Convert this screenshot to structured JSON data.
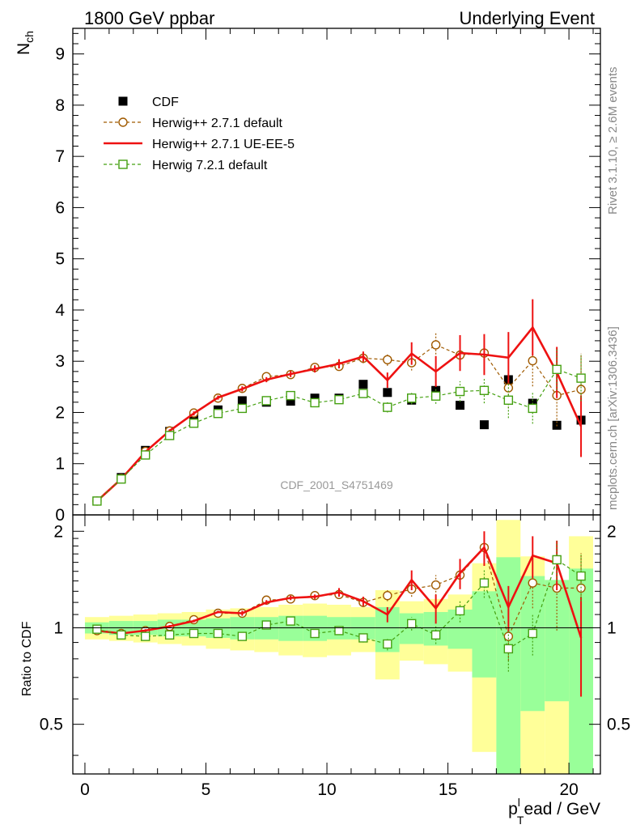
{
  "header": {
    "left": "1800 GeV ppbar",
    "right": "Underlying Event"
  },
  "side_labels": {
    "rivet": "Rivet 3.1.10, ≥ 2.6M events",
    "mcplots": "mcplots.cern.ch [arXiv:1306.3436]"
  },
  "watermark": "CDF_2001_S4751469",
  "colors": {
    "cdf": "#000000",
    "herwigpp_default": "#a05a00",
    "herwigpp_ueee5": "#ee1111",
    "herwig7": "#44a010",
    "band_outer": "#ffff99",
    "band_inner": "#99ff99"
  },
  "chart_data": [
    {
      "type": "scatter",
      "ylabel_main": "N",
      "ylabel_sub": "ch",
      "xlim": [
        -0.5,
        21.3
      ],
      "ylim": [
        0,
        9.5
      ],
      "yticks": [
        0,
        1,
        2,
        3,
        4,
        5,
        6,
        7,
        8,
        9
      ],
      "x": [
        0.5,
        1.5,
        2.5,
        3.5,
        4.5,
        5.5,
        6.5,
        7.5,
        8.5,
        9.5,
        10.5,
        11.5,
        12.5,
        13.5,
        14.5,
        15.5,
        16.5,
        17.5,
        18.5,
        19.5,
        20.5
      ],
      "series": [
        {
          "name": "CDF",
          "style": "squares",
          "values": [
            0.27,
            0.73,
            1.26,
            1.63,
            1.9,
            2.05,
            2.23,
            2.2,
            2.22,
            2.28,
            2.28,
            2.55,
            2.39,
            2.24,
            2.43,
            2.14,
            1.76,
            2.64,
            2.18,
            1.75,
            1.85
          ]
        },
        {
          "name": "Herwig++ 2.7.1 default",
          "style": "circles-dashed",
          "values": [
            0.27,
            0.71,
            1.24,
            1.64,
            1.99,
            2.28,
            2.47,
            2.7,
            2.74,
            2.88,
            2.9,
            3.06,
            3.03,
            2.97,
            3.32,
            3.12,
            3.16,
            2.48,
            3.01,
            2.33,
            2.45
          ],
          "errors": [
            0.02,
            0.03,
            0.03,
            0.03,
            0.04,
            0.04,
            0.05,
            0.06,
            0.06,
            0.07,
            0.08,
            0.1,
            0.12,
            0.15,
            0.25,
            0.3,
            0.35,
            0.4,
            0.5,
            0.6,
            0.7
          ]
        },
        {
          "name": "Herwig++ 2.7.1 UE-EE-5",
          "style": "solid-line",
          "values": [
            0.27,
            0.7,
            1.23,
            1.64,
            1.98,
            2.29,
            2.46,
            2.64,
            2.75,
            2.85,
            2.95,
            3.09,
            2.63,
            3.15,
            2.8,
            3.16,
            3.13,
            3.07,
            3.66,
            2.78,
            1.73
          ],
          "errors": [
            0.02,
            0.03,
            0.03,
            0.03,
            0.04,
            0.04,
            0.05,
            0.05,
            0.06,
            0.07,
            0.09,
            0.1,
            0.15,
            0.22,
            0.3,
            0.35,
            0.4,
            0.5,
            0.55,
            0.5,
            0.6
          ]
        },
        {
          "name": "Herwig 7.2.1 default",
          "style": "squares-dashed",
          "values": [
            0.27,
            0.7,
            1.17,
            1.55,
            1.79,
            1.98,
            2.08,
            2.23,
            2.33,
            2.19,
            2.25,
            2.37,
            2.1,
            2.28,
            2.32,
            2.41,
            2.43,
            2.24,
            2.08,
            2.84,
            2.67
          ],
          "errors": [
            0.02,
            0.03,
            0.03,
            0.03,
            0.04,
            0.04,
            0.04,
            0.05,
            0.05,
            0.06,
            0.07,
            0.08,
            0.1,
            0.12,
            0.15,
            0.2,
            0.25,
            0.35,
            0.3,
            0.4,
            0.45
          ]
        }
      ]
    },
    {
      "type": "scatter",
      "ylabel": "Ratio to CDF",
      "xlabel_main": "p",
      "xlabel_sub": "T",
      "xlabel_sup": "l",
      "xlabel_rest": "ead / GeV",
      "xlim": [
        -0.5,
        21.3
      ],
      "ylim": [
        0.35,
        2.25
      ],
      "yticks": [
        0.5,
        1,
        2
      ],
      "xticks": [
        0,
        5,
        10,
        15,
        20
      ],
      "x": [
        0.5,
        1.5,
        2.5,
        3.5,
        4.5,
        5.5,
        6.5,
        7.5,
        8.5,
        9.5,
        10.5,
        11.5,
        12.5,
        13.5,
        14.5,
        15.5,
        16.5,
        17.5,
        18.5,
        19.5,
        20.5
      ],
      "bands": {
        "outer": [
          [
            0.92,
            1.08
          ],
          [
            0.91,
            1.09
          ],
          [
            0.9,
            1.1
          ],
          [
            0.89,
            1.11
          ],
          [
            0.88,
            1.12
          ],
          [
            0.86,
            1.14
          ],
          [
            0.85,
            1.15
          ],
          [
            0.84,
            1.16
          ],
          [
            0.82,
            1.18
          ],
          [
            0.81,
            1.19
          ],
          [
            0.82,
            1.18
          ],
          [
            0.84,
            1.16
          ],
          [
            0.69,
            1.31
          ],
          [
            0.79,
            1.21
          ],
          [
            0.77,
            1.23
          ],
          [
            0.73,
            1.27
          ],
          [
            0.41,
            1.59
          ],
          [
            0.35,
            2.17
          ],
          [
            0.35,
            1.67
          ],
          [
            0.35,
            1.34
          ],
          [
            0.35,
            1.93
          ]
        ],
        "inner": [
          [
            0.96,
            1.04
          ],
          [
            0.95,
            1.05
          ],
          [
            0.95,
            1.05
          ],
          [
            0.94,
            1.06
          ],
          [
            0.94,
            1.06
          ],
          [
            0.93,
            1.07
          ],
          [
            0.92,
            1.08
          ],
          [
            0.92,
            1.08
          ],
          [
            0.91,
            1.09
          ],
          [
            0.91,
            1.09
          ],
          [
            0.92,
            1.08
          ],
          [
            0.92,
            1.08
          ],
          [
            0.84,
            1.16
          ],
          [
            0.89,
            1.11
          ],
          [
            0.88,
            1.12
          ],
          [
            0.86,
            1.14
          ],
          [
            0.7,
            1.3
          ],
          [
            0.35,
            1.66
          ],
          [
            0.55,
            1.45
          ],
          [
            0.59,
            1.41
          ],
          [
            0.35,
            1.53
          ]
        ]
      },
      "series": [
        {
          "name": "Herwig++ 2.7.1 default",
          "style": "circles-dashed",
          "values": [
            0.98,
            0.96,
            0.98,
            1.01,
            1.06,
            1.11,
            1.11,
            1.22,
            1.23,
            1.26,
            1.27,
            1.2,
            1.26,
            1.32,
            1.36,
            1.46,
            1.78,
            0.94,
            1.38,
            1.33,
            1.33
          ],
          "errors": [
            0.01,
            0.01,
            0.01,
            0.01,
            0.01,
            0.01,
            0.02,
            0.02,
            0.02,
            0.02,
            0.03,
            0.04,
            0.05,
            0.07,
            0.1,
            0.14,
            0.2,
            0.15,
            0.23,
            0.35,
            0.38
          ]
        },
        {
          "name": "Herwig++ 2.7.1 UE-EE-5",
          "style": "solid-line",
          "values": [
            0.98,
            0.96,
            0.98,
            1.01,
            1.05,
            1.12,
            1.11,
            1.2,
            1.24,
            1.25,
            1.29,
            1.21,
            1.1,
            1.41,
            1.15,
            1.48,
            1.78,
            1.16,
            1.68,
            1.59,
            0.93
          ],
          "errors": [
            0.01,
            0.01,
            0.01,
            0.01,
            0.01,
            0.01,
            0.02,
            0.02,
            0.02,
            0.02,
            0.04,
            0.04,
            0.06,
            0.1,
            0.12,
            0.16,
            0.22,
            0.19,
            0.25,
            0.28,
            0.32
          ]
        },
        {
          "name": "Herwig 7.2.1 default",
          "style": "squares-dashed",
          "values": [
            0.99,
            0.95,
            0.94,
            0.95,
            0.96,
            0.96,
            0.94,
            1.02,
            1.05,
            0.96,
            0.98,
            0.93,
            0.89,
            1.03,
            0.95,
            1.13,
            1.38,
            0.86,
            0.96,
            1.63,
            1.45
          ],
          "errors": [
            0.01,
            0.01,
            0.01,
            0.01,
            0.01,
            0.01,
            0.02,
            0.02,
            0.02,
            0.03,
            0.03,
            0.03,
            0.04,
            0.05,
            0.06,
            0.09,
            0.14,
            0.13,
            0.14,
            0.23,
            0.24
          ]
        }
      ]
    }
  ]
}
